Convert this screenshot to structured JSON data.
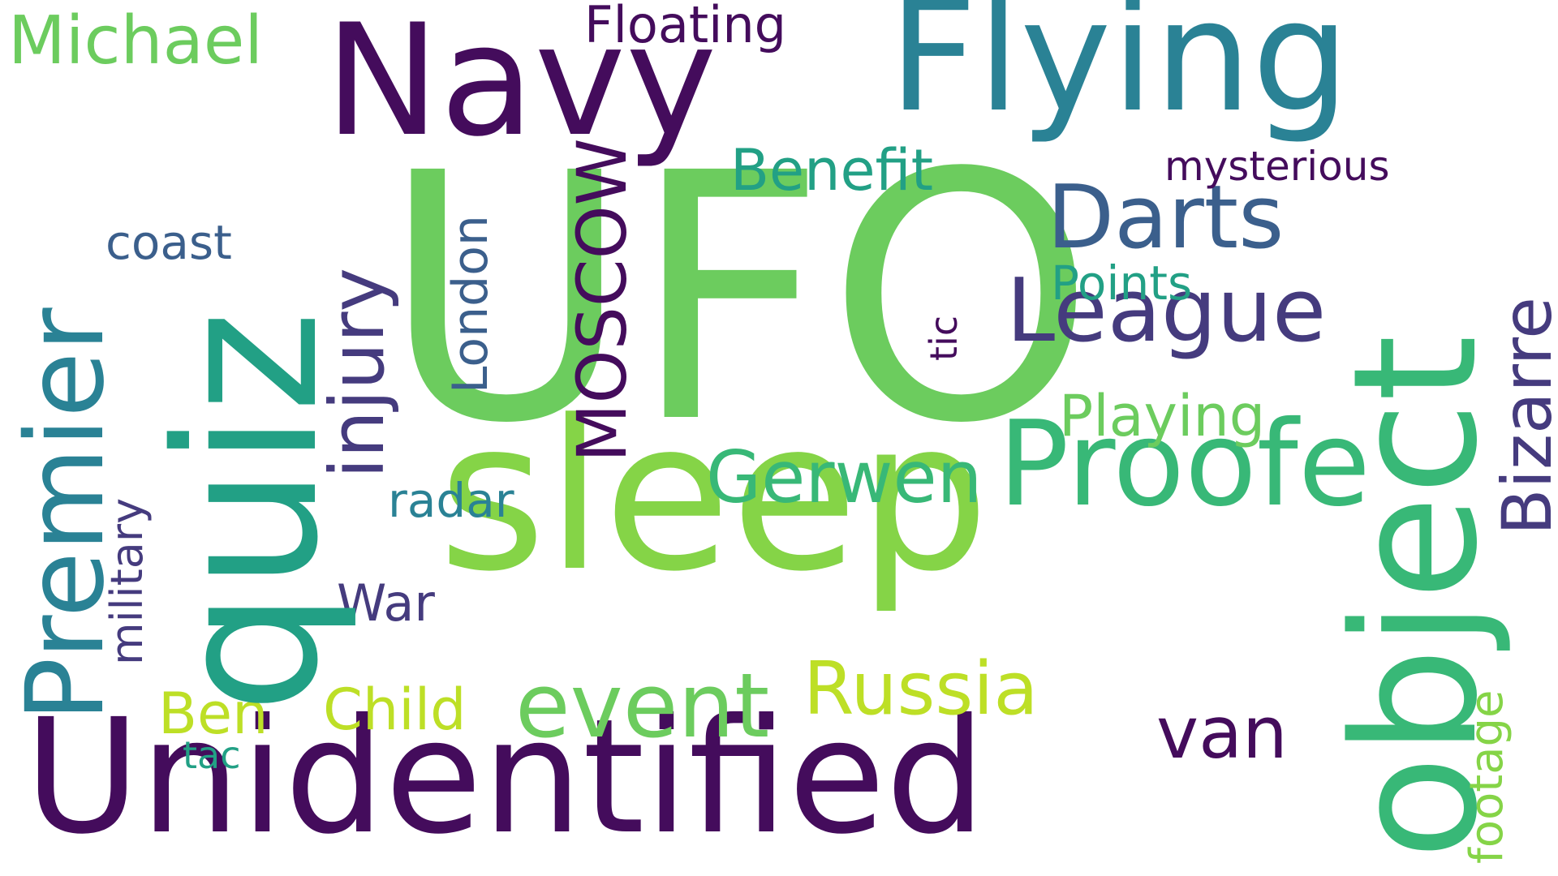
{
  "colors": {
    "background": "#ffffff",
    "dark_purple": "#440c5c",
    "indigo": "#453b7e",
    "slate_blue": "#3b5f8c",
    "teal": "#2a8295",
    "teal_green": "#22a085",
    "green": "#38b877",
    "light_green": "#6ccc5e",
    "lime": "#85d447",
    "yellow_green": "#bddf26"
  },
  "words": {
    "ufo": "UFO",
    "sleep": "sleep",
    "quiz": "quiz",
    "unidentified": "Unidentified",
    "object": "object",
    "flying": "Flying",
    "navy": "Navy",
    "proofe": "Proofe",
    "league": "League",
    "darts": "Darts",
    "premier": "Premier",
    "event": "event",
    "russia": "Russia",
    "moscow": "MOSCOW",
    "injury": "injury",
    "gerwen": "Gerwen",
    "benefit": "Benefit",
    "bizarre": "Bizarre",
    "michael": "Michael",
    "floating": "Floating",
    "mysterious": "mysterious",
    "coast": "coast",
    "london": "London",
    "points": "Points",
    "playing": "Playing",
    "tic": "tic",
    "military": "military",
    "radar": "radar",
    "war": "War",
    "van": "van",
    "ben": "Ben",
    "child": "Child",
    "tac": "tac",
    "footage": "footage"
  }
}
